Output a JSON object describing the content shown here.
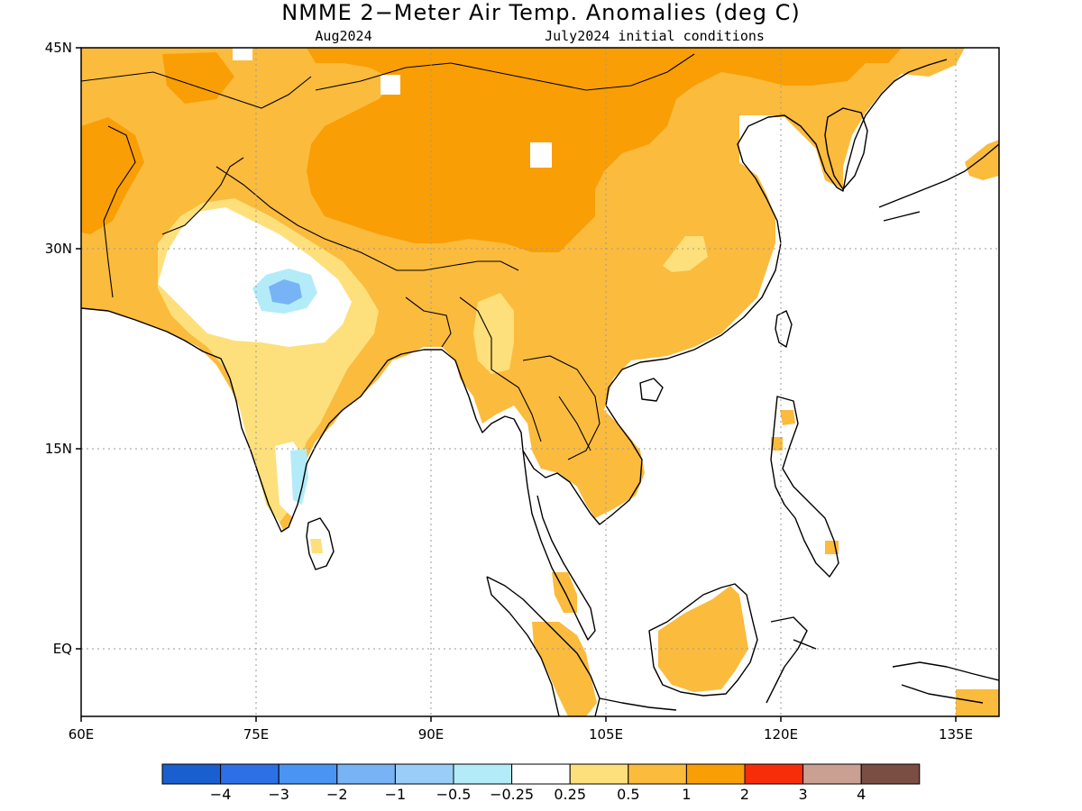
{
  "title": "NMME 2−Meter Air Temp. Anomalies (deg C)",
  "subtitle_left": "Aug2024",
  "subtitle_right": "July2024 initial conditions",
  "map": {
    "lon_range": [
      60,
      140
    ],
    "lat_range": [
      -6,
      45
    ],
    "x_ticks": [
      "60E",
      "75E",
      "90E",
      "105E",
      "120E",
      "135E"
    ],
    "y_ticks": [
      "45N",
      "30N",
      "15N",
      "EQ"
    ],
    "grid": "dotted"
  },
  "colorbar": {
    "colors": [
      "#1a5fcf",
      "#2d70e6",
      "#4a94f3",
      "#78b3f6",
      "#9acdf7",
      "#b3ecf8",
      "#ffffff",
      "#fde07b",
      "#fbbb3d",
      "#f99e05",
      "#f72d0a",
      "#c9a092",
      "#7a4e42"
    ],
    "labels": [
      "−4",
      "−3",
      "−2",
      "−1",
      "−0.5",
      "−0.25",
      "0.25",
      "0.5",
      "1",
      "2",
      "3",
      "4"
    ]
  },
  "colors": {
    "ocean": "#ffffff",
    "land_neutral": "#ffffff",
    "anom_light": "#fde07b",
    "anom_mid": "#fbbb3d",
    "anom_strong": "#f99e05",
    "anom_cool": "#b3ecf8",
    "anom_cooler": "#78b3f6",
    "coast": "#000000"
  }
}
